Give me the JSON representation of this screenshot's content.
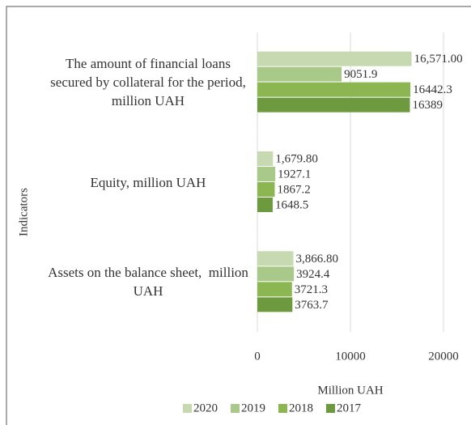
{
  "chart_data": {
    "type": "bar",
    "orientation": "horizontal",
    "categories": [
      "The amount of financial loans secured by collateral for the period, million UAH",
      "Equity, million UAH",
      "Assets on the balance sheet,  million UAH"
    ],
    "series": [
      {
        "name": "2020",
        "color": "#c7d9b0",
        "values": [
          16571.0,
          1679.8,
          3866.8
        ],
        "value_labels": [
          "16,571.00",
          "1,679.80",
          "3,866.80"
        ]
      },
      {
        "name": "2019",
        "color": "#a8c98a",
        "values": [
          9051.9,
          1927.1,
          3924.4
        ]
      },
      {
        "name": "2018",
        "color": "#8cb651",
        "values": [
          16442.3,
          1867.2,
          3721.3
        ]
      },
      {
        "name": "2017",
        "color": "#6e9a3f",
        "values": [
          16389,
          1648.5,
          3763.7
        ]
      }
    ],
    "xlim": [
      0,
      20000
    ],
    "xticks": [
      0,
      10000,
      20000
    ],
    "xlabel": "Million UAH",
    "ylabel": "Indicators",
    "grid": true,
    "legend": "bottom"
  }
}
